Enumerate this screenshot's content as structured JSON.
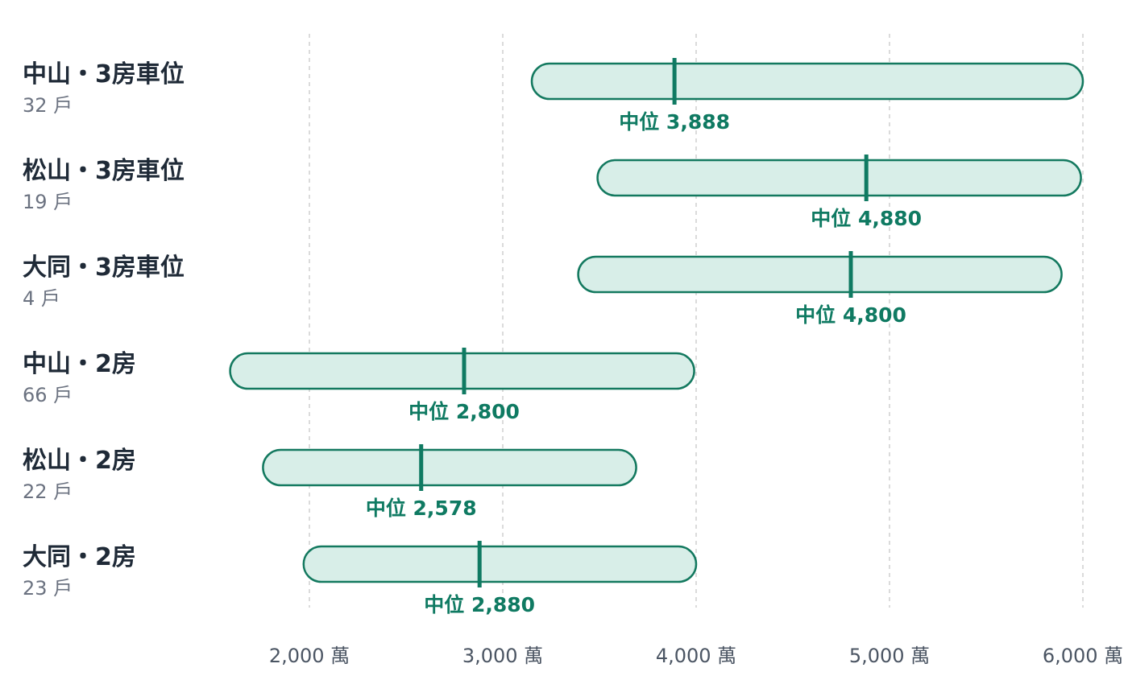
{
  "chart_data": {
    "type": "range",
    "x_unit_suffix": " 萬",
    "xlim": [
      1600,
      6000
    ],
    "x_ticks": [
      2000,
      3000,
      4000,
      5000,
      6000
    ],
    "x_tick_labels": [
      "2,000 萬",
      "3,000 萬",
      "4,000 萬",
      "5,000 萬",
      "6,000 萬"
    ],
    "grid": "vertical-dashed",
    "median_prefix": "中位",
    "rows": [
      {
        "label": "中山・3房車位",
        "count": "32 戶",
        "min": 3150,
        "max": 6000,
        "median": 3888,
        "median_label": "中位 3,888"
      },
      {
        "label": "松山・3房車位",
        "count": "19 戶",
        "min": 3490,
        "max": 5990,
        "median": 4880,
        "median_label": "中位 4,880"
      },
      {
        "label": "大同・3房車位",
        "count": "4 戶",
        "min": 3390,
        "max": 5890,
        "median": 4800,
        "median_label": "中位 4,800"
      },
      {
        "label": "中山・2房",
        "count": "66 戶",
        "min": 1590,
        "max": 3990,
        "median": 2800,
        "median_label": "中位 2,800"
      },
      {
        "label": "松山・2房",
        "count": "22 戶",
        "min": 1760,
        "max": 3690,
        "median": 2578,
        "median_label": "中位 2,578"
      },
      {
        "label": "大同・2房",
        "count": "23 戶",
        "min": 1970,
        "max": 4000,
        "median": 2880,
        "median_label": "中位 2,880"
      }
    ],
    "colors": {
      "bar_fill": "#d8eee8",
      "bar_stroke": "#13795f",
      "median": "#0f7a62",
      "label": "#1f2a37",
      "count": "#6b7280",
      "tick": "#4b5563",
      "grid": "#cfcfcf"
    }
  }
}
